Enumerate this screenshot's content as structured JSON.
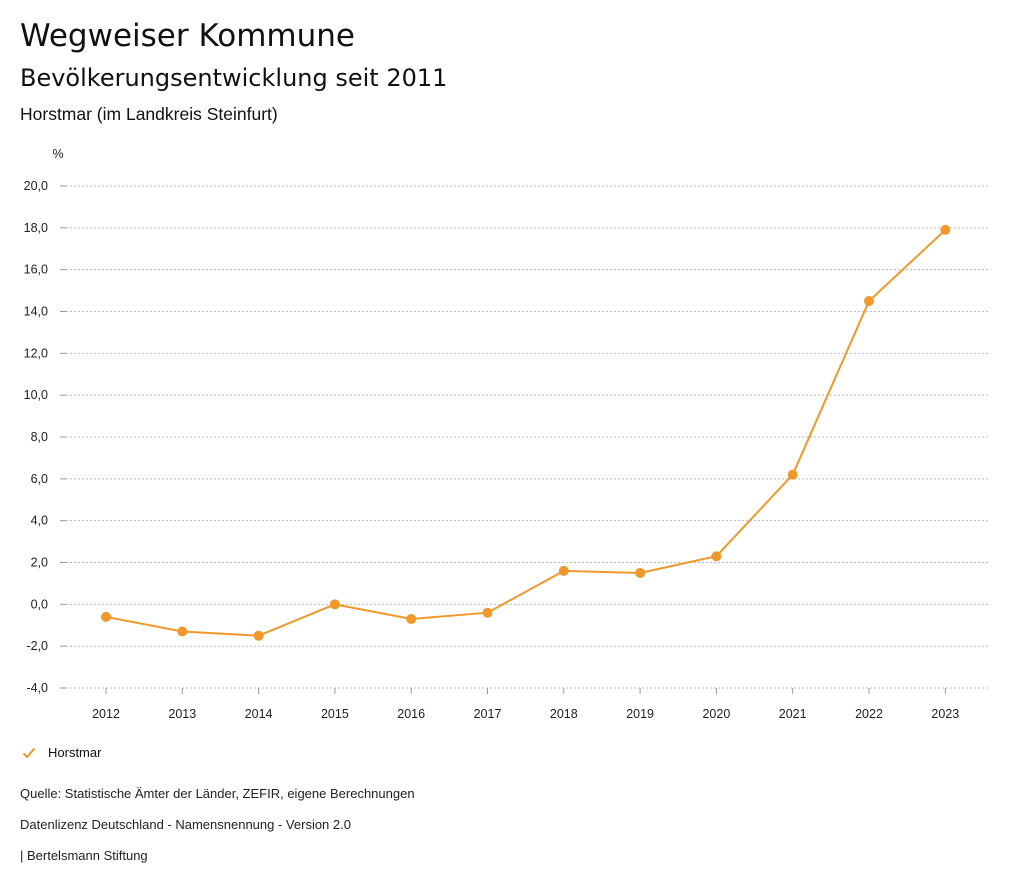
{
  "header": {
    "title": "Wegweiser Kommune",
    "subtitle": "Bevölkerungsentwicklung seit 2011",
    "region": "Horstmar (im Landkreis Steinfurt)"
  },
  "colors": {
    "series": "#f0982b",
    "grid": "#bbbbbb",
    "axis": "#999999"
  },
  "chart_data": {
    "type": "line",
    "title": "Bevölkerungsentwicklung seit 2011",
    "ylabel": "%",
    "xlabel": "",
    "ylim": [
      -4.0,
      20.0
    ],
    "yticks": [
      "-4,0",
      "-2,0",
      "0,0",
      "2,0",
      "4,0",
      "6,0",
      "8,0",
      "10,0",
      "12,0",
      "14,0",
      "16,0",
      "18,0",
      "20,0"
    ],
    "ytick_values": [
      -4,
      -2,
      0,
      2,
      4,
      6,
      8,
      10,
      12,
      14,
      16,
      18,
      20
    ],
    "categories": [
      "2012",
      "2013",
      "2014",
      "2015",
      "2016",
      "2017",
      "2018",
      "2019",
      "2020",
      "2021",
      "2022",
      "2023"
    ],
    "series": [
      {
        "name": "Horstmar",
        "values": [
          -0.6,
          -1.3,
          -1.5,
          0.0,
          -0.7,
          -0.4,
          1.6,
          1.5,
          2.3,
          6.2,
          14.5,
          17.9
        ]
      }
    ],
    "grid": true,
    "legend": "bottom-left"
  },
  "legend": {
    "label": "Horstmar",
    "icon": "check-icon"
  },
  "footer": {
    "source": "Quelle: Statistische Ämter der Länder, ZEFIR, eigene Berechnungen",
    "license": "Datenlizenz Deutschland - Namensnennung - Version 2.0",
    "publisher": "| Bertelsmann Stiftung"
  }
}
